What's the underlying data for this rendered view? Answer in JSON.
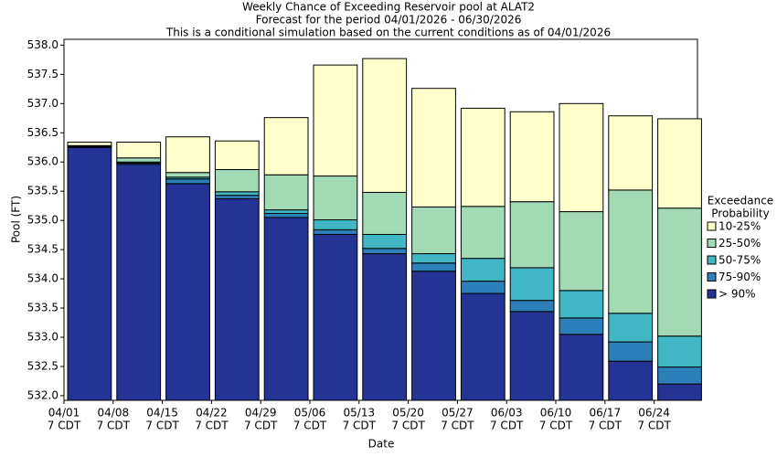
{
  "chart_data": {
    "type": "range_bar",
    "title": [
      "Weekly Chance of Exceeding Reservoir pool at ALAT2",
      "Forecast for the period 04/01/2026 - 06/30/2026",
      "This is a conditional simulation based on the current conditions as of 04/01/2026"
    ],
    "x_label": "Date",
    "y_label": "Pool (FT)",
    "legend_title": [
      "Exceedance",
      "Probability"
    ],
    "categories": [
      [
        "04/01",
        "7 CDT"
      ],
      [
        "04/08",
        "7 CDT"
      ],
      [
        "04/15",
        "7 CDT"
      ],
      [
        "04/22",
        "7 CDT"
      ],
      [
        "04/29",
        "7 CDT"
      ],
      [
        "05/06",
        "7 CDT"
      ],
      [
        "05/13",
        "7 CDT"
      ],
      [
        "05/20",
        "7 CDT"
      ],
      [
        "05/27",
        "7 CDT"
      ],
      [
        "06/03",
        "7 CDT"
      ],
      [
        "06/10",
        "7 CDT"
      ],
      [
        "06/17",
        "7 CDT"
      ],
      [
        "06/24",
        "7 CDT"
      ]
    ],
    "series": [
      {
        "name": "10-25%",
        "color": "#ffffcc",
        "values": [
          536.34,
          536.34,
          536.43,
          536.36,
          536.76,
          537.66,
          537.77,
          537.26,
          536.92,
          536.86,
          537.0,
          536.79,
          536.74
        ]
      },
      {
        "name": "25-50%",
        "color": "#a1dab4",
        "values": [
          536.28,
          536.07,
          535.82,
          535.87,
          535.78,
          535.76,
          535.48,
          535.23,
          535.24,
          535.32,
          535.15,
          535.52,
          535.21
        ]
      },
      {
        "name": "50-75%",
        "color": "#41b6c4",
        "values": [
          536.27,
          536.0,
          535.74,
          535.49,
          535.18,
          535.01,
          534.76,
          534.43,
          534.35,
          534.19,
          533.8,
          533.41,
          533.02
        ]
      },
      {
        "name": "75-90%",
        "color": "#2c7fb8",
        "values": [
          536.26,
          535.98,
          535.71,
          535.43,
          535.12,
          534.84,
          534.52,
          534.27,
          533.96,
          533.63,
          533.33,
          532.92,
          532.49
        ]
      },
      {
        "name": "> 90%",
        "color": "#253494",
        "values": [
          536.25,
          535.96,
          535.63,
          535.37,
          535.05,
          534.76,
          534.43,
          534.13,
          533.75,
          533.44,
          533.05,
          532.59,
          532.2
        ]
      }
    ],
    "ylim": [
      531.92,
      538.1
    ],
    "yticks": [
      {
        "value": 532,
        "label": "532.0"
      },
      532.5,
      {
        "value": 533,
        "label": "533.0"
      },
      533.5,
      {
        "value": 534,
        "label": "534.0"
      },
      534.5,
      {
        "value": 535,
        "label": "535.0"
      },
      535.5,
      {
        "value": 536,
        "label": "536.0"
      },
      536.5,
      {
        "value": 537,
        "label": "537.0"
      },
      537.5,
      {
        "value": 538,
        "label": "538.0"
      }
    ],
    "legend": "right"
  }
}
